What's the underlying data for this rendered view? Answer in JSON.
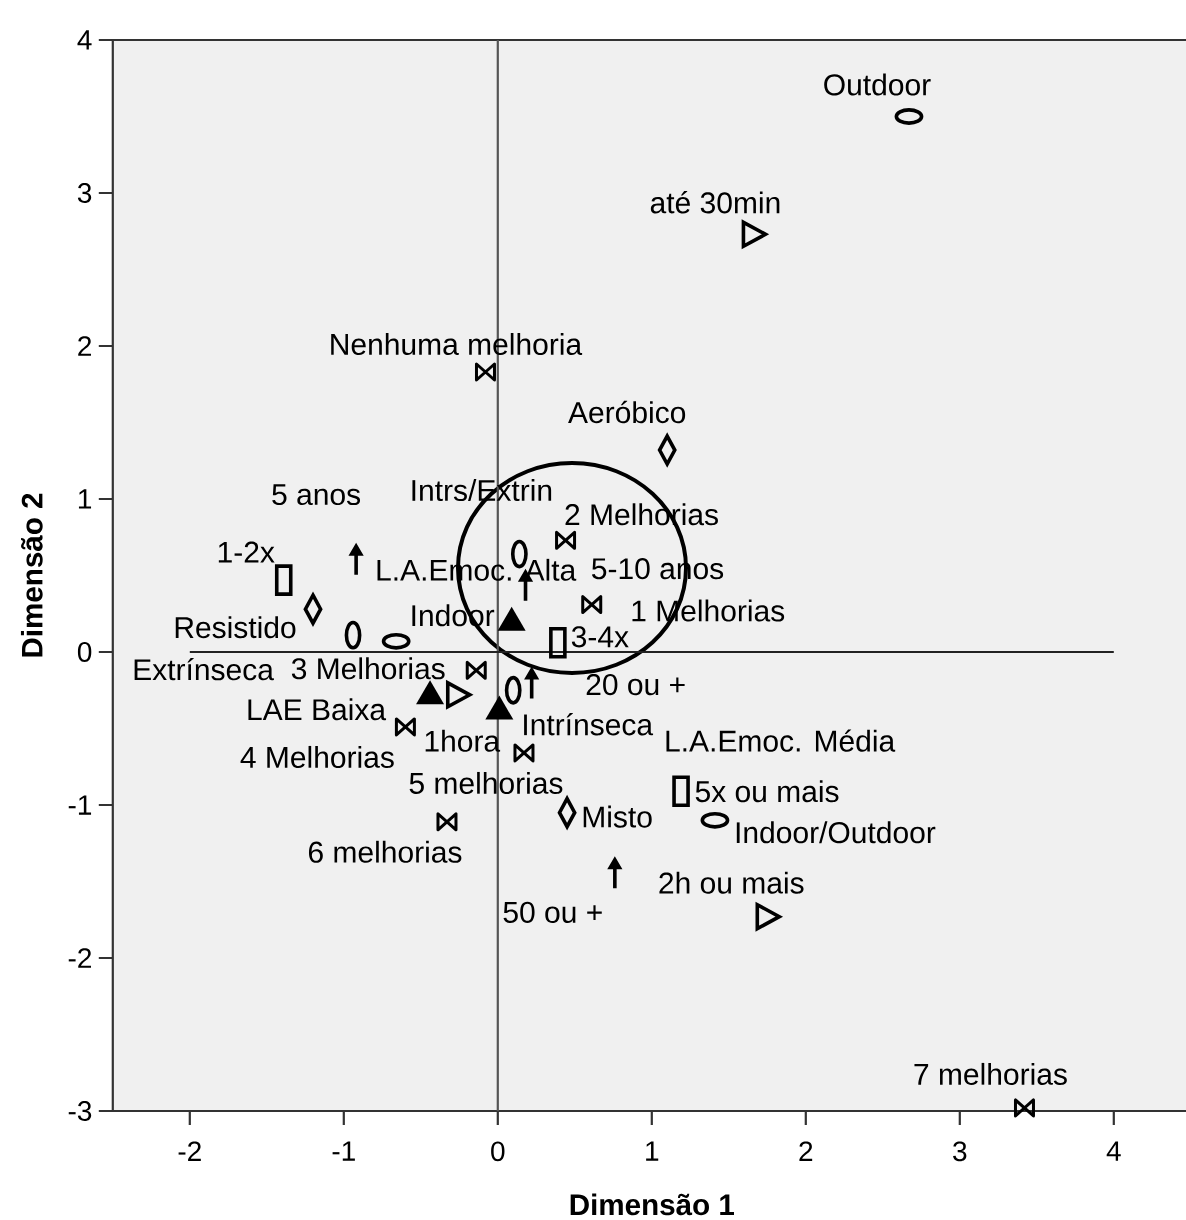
{
  "chart_data": {
    "type": "scatter",
    "xlabel": "Dimensão 1",
    "ylabel": "Dimensão 2",
    "xlim": [
      -2.5,
      4.5
    ],
    "ylim": [
      -3,
      4
    ],
    "xticks": [
      -2,
      -1,
      0,
      1,
      2,
      3,
      4
    ],
    "yticks": [
      -3,
      -2,
      -1,
      0,
      1,
      2,
      3,
      4
    ],
    "ref_lines": [
      {
        "axis": "x",
        "value": 0,
        "color": "#555555"
      },
      {
        "axis": "y",
        "value": 0,
        "color": "#222222"
      }
    ],
    "series": [
      {
        "color": "#000000",
        "x": [
          -0.08,
          0.61,
          0.44,
          -0.14,
          -0.6,
          0.17,
          -0.33,
          3.42
        ],
        "values": [
          1.83,
          0.31,
          0.73,
          -0.12,
          -0.49,
          -0.66,
          -1.11,
          -2.98
        ]
      },
      {
        "color": "#000000",
        "x": [
          1.66,
          -0.26,
          1.75
        ],
        "values": [
          2.73,
          -0.28,
          -1.73
        ]
      },
      {
        "color": "#000000",
        "x": [
          -1.39,
          0.39,
          1.19
        ],
        "values": [
          0.47,
          0.06,
          -0.91
        ]
      },
      {
        "marker": "diamond",
        "color": "#000000",
        "x": [
          1.1,
          -1.2,
          0.45
        ],
        "values": [
          1.32,
          0.28,
          -1.05
        ]
      },
      {
        "color": "#000000",
        "x": [
          -0.66,
          2.67,
          1.41
        ],
        "values": [
          0.07,
          3.5,
          -1.1
        ]
      },
      {
        "marker": "triangle",
        "color": "#000000",
        "x": [
          -0.44,
          0.01,
          0.09
        ],
        "values": [
          -0.27,
          -0.37,
          0.21
        ]
      },
      {
        "color": "#000000",
        "x": [
          0.1,
          -0.94,
          0.14
        ],
        "values": [
          -0.25,
          0.11,
          0.64
        ]
      },
      {
        "color": "#000000",
        "x": [
          -0.92,
          0.18,
          0.22,
          0.76
        ],
        "values": [
          0.61,
          0.44,
          -0.2,
          -1.44
        ]
      }
    ],
    "annotations": [
      {
        "text": "Nenhuma melhoria",
        "x": -0.08,
        "y": 1.83
      },
      {
        "text": "1 Melhorias",
        "x": 0.61,
        "y": 0.31
      },
      {
        "text": "2 Melhorias",
        "x": 0.44,
        "y": 0.73
      },
      {
        "text": "3 Melhorias",
        "x": -0.14,
        "y": -0.12
      },
      {
        "text": "4 Melhorias",
        "x": -0.6,
        "y": -0.49
      },
      {
        "text": "5 melhorias",
        "x": 0.17,
        "y": -0.66
      },
      {
        "text": "6 melhorias",
        "x": -0.33,
        "y": -1.11
      },
      {
        "text": "7 melhorias",
        "x": 3.42,
        "y": -2.98
      },
      {
        "text": "até 30min",
        "x": 1.66,
        "y": 2.73
      },
      {
        "text": "1hora",
        "x": -0.26,
        "y": -0.28
      },
      {
        "text": "2h ou mais",
        "x": 1.75,
        "y": -1.73
      },
      {
        "text": "1-2x",
        "x": -1.39,
        "y": 0.47
      },
      {
        "text": "3-4x",
        "x": 0.39,
        "y": 0.06
      },
      {
        "text": "5x ou mais",
        "x": 1.19,
        "y": -0.91
      },
      {
        "text": "Aeróbico",
        "x": 1.1,
        "y": 1.32
      },
      {
        "text": "Resistido",
        "x": -1.2,
        "y": 0.28
      },
      {
        "text": "Misto",
        "x": 0.45,
        "y": -1.05
      },
      {
        "text": "Indoor",
        "x": -0.66,
        "y": 0.07
      },
      {
        "text": "Outdoor",
        "x": 2.67,
        "y": 3.5
      },
      {
        "text": "Indoor/Outdoor",
        "x": 1.41,
        "y": -1.1
      },
      {
        "text": "LAE Baixa",
        "x": -0.44,
        "y": -0.27
      },
      "L.A.Emoc. Média",
      {
        "text": "L.A.Emoc. Alta",
        "x": 0.09,
        "y": 0.21
      },
      {
        "text": "Intrínseca",
        "x": 0.1,
        "y": -0.25
      },
      {
        "text": "Extrínseca",
        "x": -0.94,
        "y": 0.11
      },
      {
        "text": "Intrs/Extrin",
        "x": 0.14,
        "y": 0.64
      },
      {
        "text": "5 anos",
        "x": -0.92,
        "y": 0.61
      },
      {
        "text": "5-10 anos",
        "x": 0.18,
        "y": 0.44
      },
      {
        "text": "20 ou +",
        "x": 0.22,
        "y": -0.2
      },
      {
        "text": "50 ou +",
        "x": 0.76,
        "y": -1.44
      }
    ]
  }
}
